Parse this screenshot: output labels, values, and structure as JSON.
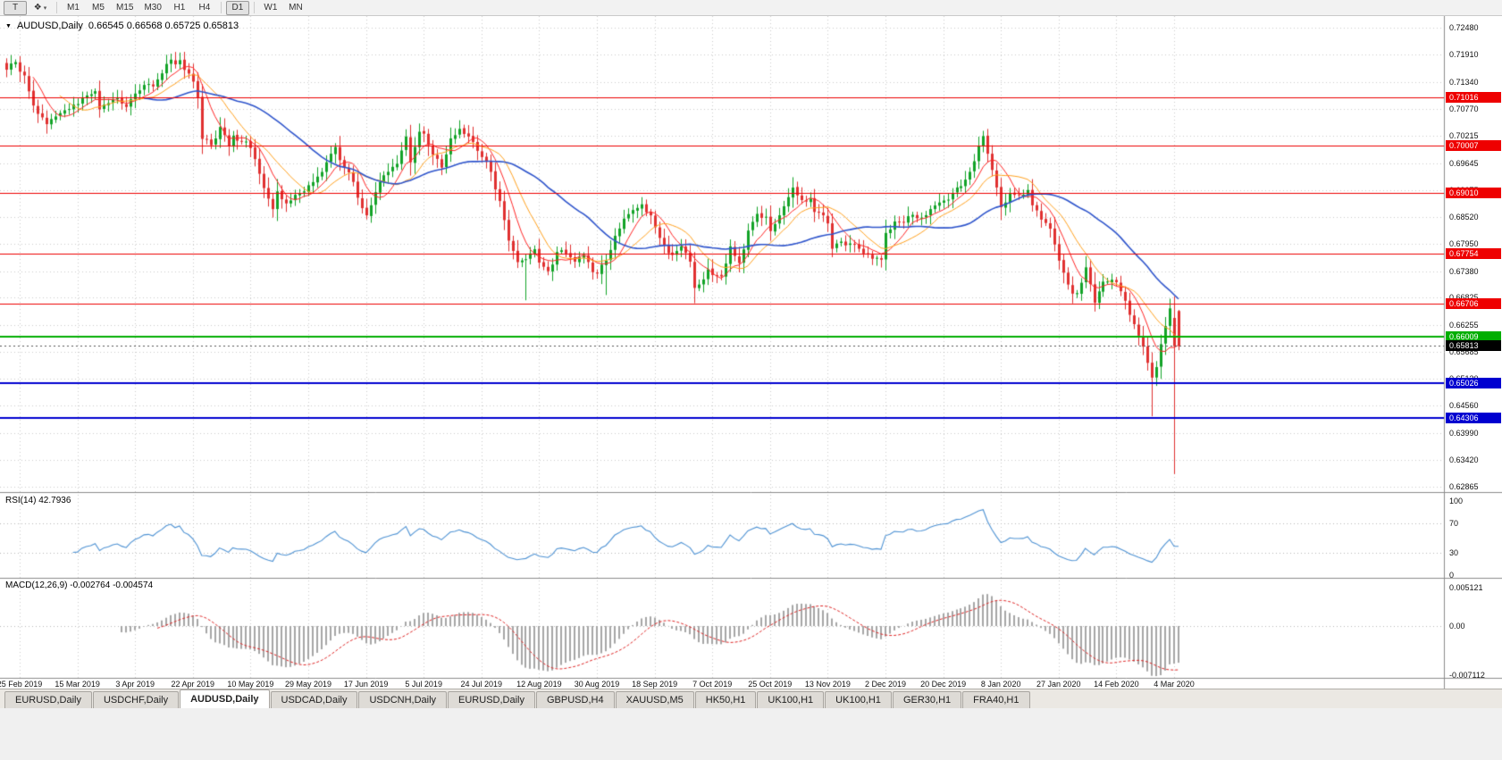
{
  "icons": {
    "symbol_marker": "▼",
    "dropdown_caret": "▾"
  },
  "toolbar": {
    "tools": [
      {
        "label": "T",
        "name": "cursor-tool"
      },
      {
        "label": "❖",
        "name": "objects-tool"
      }
    ],
    "timeframes": [
      {
        "label": "M1"
      },
      {
        "label": "M5"
      },
      {
        "label": "M15"
      },
      {
        "label": "M30"
      },
      {
        "label": "H1"
      },
      {
        "label": "H4"
      },
      {
        "label": "D1",
        "active": true,
        "sep_before": true
      },
      {
        "label": "W1",
        "sep_before": true
      },
      {
        "label": "MN"
      }
    ]
  },
  "chart": {
    "title": "AUDUSD,Daily",
    "ohlc": "0.66545 0.66568 0.65725 0.65813"
  },
  "price_axis": {
    "ticks": [
      "0.72480",
      "0.71910",
      "0.71340",
      "0.70770",
      "0.70215",
      "0.69645",
      "0.69075",
      "0.68520",
      "0.67950",
      "0.67380",
      "0.66825",
      "0.66255",
      "0.65685",
      "0.65130",
      "0.64560",
      "0.63990",
      "0.63420",
      "0.62865"
    ]
  },
  "hlines": [
    {
      "price": 0.71016,
      "label": "0.71016",
      "color": "#ee0000",
      "width": 1
    },
    {
      "price": 0.70007,
      "label": "0.70007",
      "color": "#ee0000",
      "width": 1
    },
    {
      "price": 0.6901,
      "label": "0.69010",
      "color": "#ee0000",
      "width": 1
    },
    {
      "price": 0.67754,
      "label": "0.67754",
      "color": "#ee0000",
      "width": 1
    },
    {
      "price": 0.66706,
      "label": "0.66706",
      "color": "#ee0000",
      "width": 1
    },
    {
      "price": 0.66009,
      "label": "0.66009",
      "color": "#00ae00",
      "width": 2
    },
    {
      "price": 0.65026,
      "label": "0.65026",
      "color": "#0000d0",
      "width": 2
    },
    {
      "price": 0.64306,
      "label": "0.64306",
      "color": "#0000d0",
      "width": 2
    }
  ],
  "current_price": {
    "price": 0.65813,
    "label": "0.65813",
    "color": "#000000"
  },
  "indicators": {
    "rsi": {
      "label": "RSI(14) 42.7936",
      "period": 14,
      "value": 42.7936,
      "ticks": [
        "100",
        "70",
        "30",
        "0"
      ]
    },
    "macd": {
      "label": "MACD(12,26,9) -0.002764 -0.004574",
      "main": -0.002764,
      "signal": -0.004574,
      "ticks": [
        "0.005121",
        "0.00",
        "-0.007112"
      ]
    }
  },
  "date_axis": [
    "25 Feb 2019",
    "15 Mar 2019",
    "3 Apr 2019",
    "22 Apr 2019",
    "10 May 2019",
    "29 May 2019",
    "17 Jun 2019",
    "5 Jul 2019",
    "24 Jul 2019",
    "12 Aug 2019",
    "30 Aug 2019",
    "18 Sep 2019",
    "7 Oct 2019",
    "25 Oct 2019",
    "13 Nov 2019",
    "2 Dec 2019",
    "20 Dec 2019",
    "8 Jan 2020",
    "27 Jan 2020",
    "14 Feb 2020",
    "4 Mar 2020"
  ],
  "tabs": [
    {
      "label": "EURUSD,Daily",
      "active": false
    },
    {
      "label": "USDCHF,Daily",
      "active": false
    },
    {
      "label": "AUDUSD,Daily",
      "active": true
    },
    {
      "label": "USDCAD,Daily",
      "active": false
    },
    {
      "label": "USDCNH,Daily",
      "active": false
    },
    {
      "label": "EURUSD,Daily",
      "active": false
    },
    {
      "label": "GBPUSD,H4",
      "active": false
    },
    {
      "label": "XAUUSD,M5",
      "active": false
    },
    {
      "label": "HK50,H1",
      "active": false
    },
    {
      "label": "UK100,H1",
      "active": false
    },
    {
      "label": "UK100,H1",
      "active": false
    },
    {
      "label": "GER30,H1",
      "active": false
    },
    {
      "label": "FRA40,H1",
      "active": false
    }
  ],
  "chart_data": {
    "type": "candlestick",
    "symbol": "AUDUSD",
    "timeframe": "Daily",
    "count": 265,
    "price_range": [
      0.62865,
      0.7248
    ],
    "anchors": [
      [
        0,
        0.716
      ],
      [
        2,
        0.7176
      ],
      [
        4,
        0.7148
      ],
      [
        6,
        0.7085
      ],
      [
        9,
        0.7046
      ],
      [
        11,
        0.7062
      ],
      [
        13,
        0.7075
      ],
      [
        16,
        0.7088
      ],
      [
        18,
        0.7106
      ],
      [
        20,
        0.7115
      ],
      [
        21,
        0.7077
      ],
      [
        23,
        0.709
      ],
      [
        25,
        0.71
      ],
      [
        27,
        0.7082
      ],
      [
        29,
        0.711
      ],
      [
        31,
        0.7128
      ],
      [
        33,
        0.7125
      ],
      [
        36,
        0.7172
      ],
      [
        39,
        0.718
      ],
      [
        41,
        0.7152
      ],
      [
        42,
        0.7135
      ],
      [
        43,
        0.7102
      ],
      [
        44,
        0.7015
      ],
      [
        46,
        0.7002
      ],
      [
        48,
        0.704
      ],
      [
        50,
        0.7
      ],
      [
        51,
        0.7022
      ],
      [
        53,
        0.701
      ],
      [
        55,
        0.6996
      ],
      [
        57,
        0.6942
      ],
      [
        59,
        0.689
      ],
      [
        60,
        0.6868
      ],
      [
        61,
        0.6905
      ],
      [
        63,
        0.688
      ],
      [
        65,
        0.6898
      ],
      [
        68,
        0.6918
      ],
      [
        70,
        0.6936
      ],
      [
        72,
        0.6966
      ],
      [
        74,
        0.6998
      ],
      [
        76,
        0.6956
      ],
      [
        78,
        0.6925
      ],
      [
        80,
        0.687
      ],
      [
        81,
        0.6855
      ],
      [
        82,
        0.6876
      ],
      [
        84,
        0.6925
      ],
      [
        86,
        0.6946
      ],
      [
        88,
        0.6963
      ],
      [
        90,
        0.702
      ],
      [
        91,
        0.6966
      ],
      [
        93,
        0.703
      ],
      [
        94,
        0.7026
      ],
      [
        96,
        0.6982
      ],
      [
        98,
        0.6955
      ],
      [
        100,
        0.7016
      ],
      [
        102,
        0.7036
      ],
      [
        104,
        0.702
      ],
      [
        106,
        0.699
      ],
      [
        107,
        0.6977
      ],
      [
        109,
        0.6946
      ],
      [
        111,
        0.6885
      ],
      [
        112,
        0.6845
      ],
      [
        113,
        0.6802
      ],
      [
        115,
        0.6757
      ],
      [
        117,
        0.6763
      ],
      [
        119,
        0.6784
      ],
      [
        120,
        0.6756
      ],
      [
        122,
        0.6738
      ],
      [
        124,
        0.6778
      ],
      [
        126,
        0.6775
      ],
      [
        128,
        0.6758
      ],
      [
        130,
        0.6772
      ],
      [
        132,
        0.6736
      ],
      [
        133,
        0.6733
      ],
      [
        135,
        0.676
      ],
      [
        137,
        0.6812
      ],
      [
        139,
        0.6848
      ],
      [
        141,
        0.6866
      ],
      [
        143,
        0.6878
      ],
      [
        145,
        0.6855
      ],
      [
        146,
        0.683
      ],
      [
        148,
        0.6792
      ],
      [
        150,
        0.6772
      ],
      [
        152,
        0.679
      ],
      [
        154,
        0.6758
      ],
      [
        155,
        0.6703
      ],
      [
        156,
        0.671
      ],
      [
        158,
        0.6742
      ],
      [
        159,
        0.673
      ],
      [
        161,
        0.6727
      ],
      [
        163,
        0.679
      ],
      [
        165,
        0.6755
      ],
      [
        167,
        0.6823
      ],
      [
        169,
        0.6858
      ],
      [
        171,
        0.6852
      ],
      [
        172,
        0.6822
      ],
      [
        174,
        0.6855
      ],
      [
        176,
        0.6893
      ],
      [
        177,
        0.6913
      ],
      [
        179,
        0.6887
      ],
      [
        181,
        0.689
      ],
      [
        182,
        0.6862
      ],
      [
        184,
        0.6855
      ],
      [
        185,
        0.6838
      ],
      [
        186,
        0.6785
      ],
      [
        188,
        0.68
      ],
      [
        190,
        0.6796
      ],
      [
        192,
        0.6785
      ],
      [
        194,
        0.6773
      ],
      [
        196,
        0.6766
      ],
      [
        197,
        0.6762
      ],
      [
        198,
        0.6818
      ],
      [
        200,
        0.6842
      ],
      [
        202,
        0.684
      ],
      [
        204,
        0.6856
      ],
      [
        206,
        0.685
      ],
      [
        208,
        0.6868
      ],
      [
        211,
        0.6886
      ],
      [
        213,
        0.6902
      ],
      [
        215,
        0.6916
      ],
      [
        217,
        0.6946
      ],
      [
        219,
        0.7
      ],
      [
        220,
        0.7021
      ],
      [
        221,
        0.6984
      ],
      [
        222,
        0.695
      ],
      [
        224,
        0.6872
      ],
      [
        226,
        0.6902
      ],
      [
        228,
        0.6898
      ],
      [
        230,
        0.6908
      ],
      [
        231,
        0.6876
      ],
      [
        233,
        0.6846
      ],
      [
        235,
        0.6827
      ],
      [
        237,
        0.676
      ],
      [
        239,
        0.671
      ],
      [
        240,
        0.6691
      ],
      [
        241,
        0.6692
      ],
      [
        243,
        0.6746
      ],
      [
        245,
        0.6672
      ],
      [
        247,
        0.6716
      ],
      [
        249,
        0.672
      ],
      [
        250,
        0.6715
      ],
      [
        252,
        0.6676
      ],
      [
        254,
        0.6627
      ],
      [
        255,
        0.6603
      ],
      [
        256,
        0.658
      ],
      [
        257,
        0.6546
      ],
      [
        258,
        0.6515
      ],
      [
        259,
        0.6537
      ],
      [
        260,
        0.6585
      ],
      [
        261,
        0.6623
      ],
      [
        262,
        0.666
      ],
      [
        263,
        0.6581
      ],
      [
        264,
        0.65813
      ]
    ],
    "overrides": {
      "39": {
        "h": 0.7196
      },
      "117": {
        "l": 0.6677
      },
      "135": {
        "l": 0.6688
      },
      "155": {
        "l": 0.6671
      },
      "220": {
        "h": 0.7032
      },
      "258": {
        "l": 0.6434
      },
      "263": {
        "o": 0.664,
        "h": 0.6685,
        "l": 0.6313,
        "c": 0.6581
      },
      "264": {
        "o": 0.66545,
        "h": 0.66568,
        "l": 0.65725,
        "c": 0.65813
      }
    },
    "ma_periods": {
      "red": 7,
      "orange": 13,
      "blue": 32
    },
    "colors": {
      "up": "#12a327",
      "down": "#e03030",
      "ma_fast": "#ff2626",
      "ma_mid": "#ffa21f",
      "ma_slow": "#2f55cc",
      "rsi": "#4f93d4",
      "macd_hist": "#a6a6a6",
      "macd_signal": "#e02525"
    }
  }
}
